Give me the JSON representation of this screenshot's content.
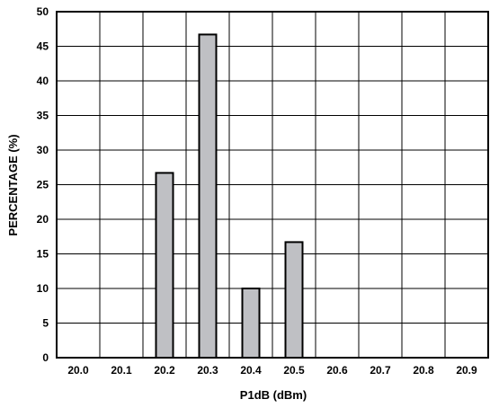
{
  "chart_data": {
    "type": "bar",
    "categories": [
      "20.0",
      "20.1",
      "20.2",
      "20.3",
      "20.4",
      "20.5",
      "20.6",
      "20.7",
      "20.8",
      "20.9"
    ],
    "values": [
      0,
      0,
      26.7,
      46.7,
      10,
      16.7,
      0,
      0,
      0,
      0
    ],
    "xlabel": "P1dB (dBm)",
    "ylabel": "PERCENTAGE (%)",
    "ylim": [
      0,
      50
    ],
    "yticks": [
      "0",
      "5",
      "10",
      "15",
      "20",
      "25",
      "30",
      "35",
      "40",
      "45",
      "50"
    ],
    "grid": true,
    "bar_color": "#bfc0c4"
  }
}
